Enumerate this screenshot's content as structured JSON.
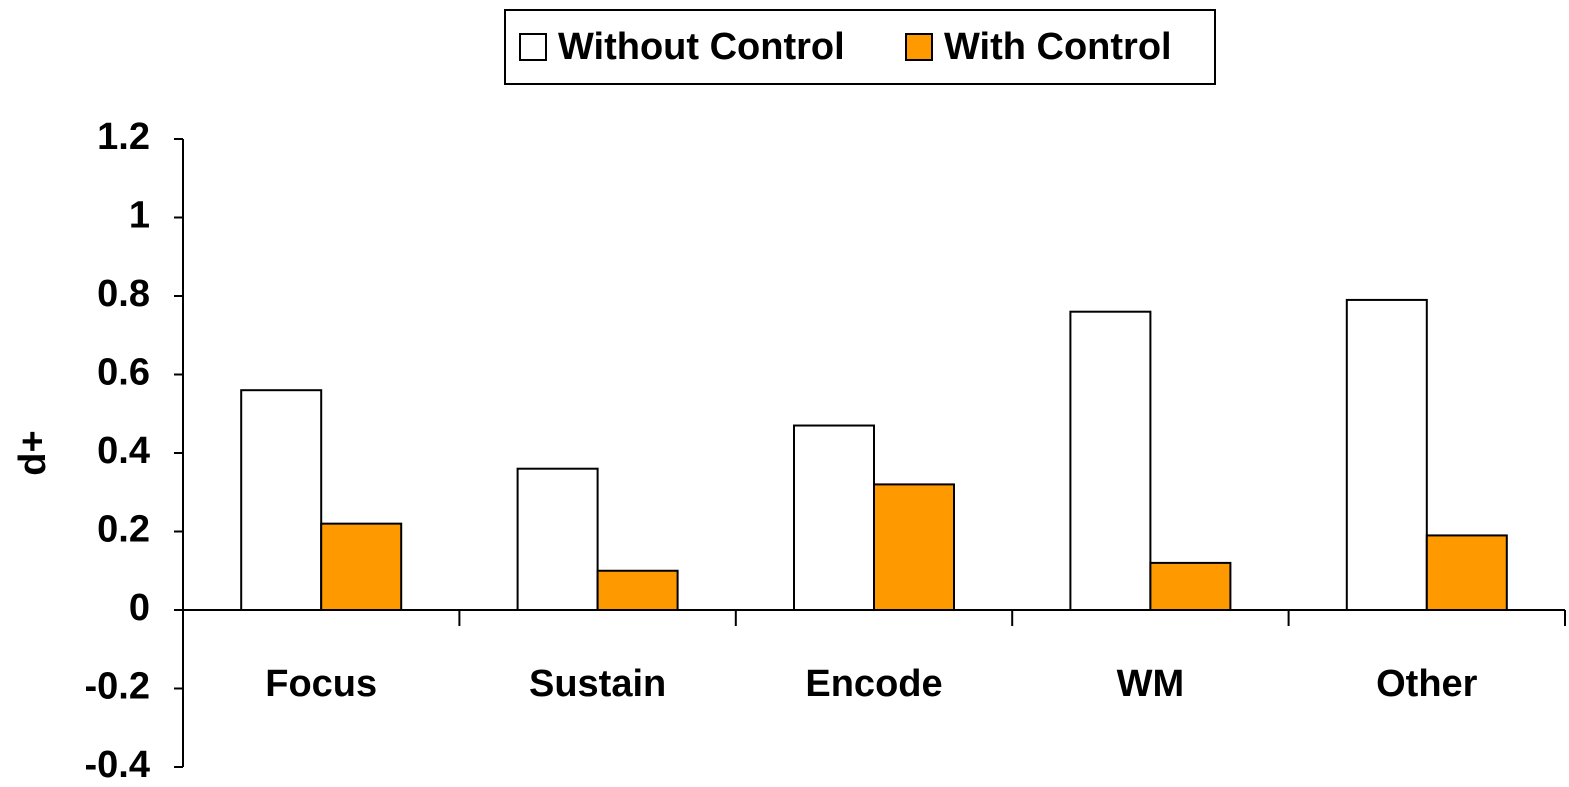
{
  "chart_data": {
    "type": "bar",
    "y_label": "d+",
    "categories": [
      "Focus",
      "Sustain",
      "Encode",
      "WM",
      "Other"
    ],
    "series": [
      {
        "name": "Without Control",
        "color": "#ffffff",
        "values": [
          0.56,
          0.36,
          0.47,
          0.76,
          0.79
        ]
      },
      {
        "name": "With Control",
        "color": "#ff9900",
        "values": [
          0.22,
          0.1,
          0.32,
          0.12,
          0.19
        ]
      }
    ],
    "ylim": [
      -0.4,
      1.2
    ],
    "yticks": [
      -0.4,
      -0.2,
      0,
      0.2,
      0.4,
      0.6,
      0.8,
      1,
      1.2
    ],
    "legend": "top",
    "grid": false
  }
}
